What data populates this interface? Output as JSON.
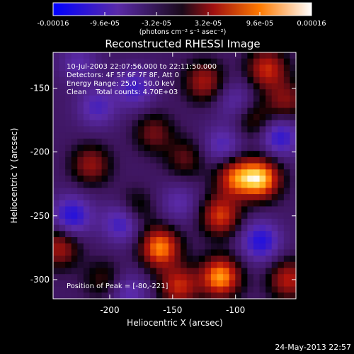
{
  "chart_data": {
    "type": "heatmap",
    "title": "Reconstructed RHESSI Image",
    "xlabel": "Heliocentric X (arcsec)",
    "ylabel": "Heliocentric Y (arcsec)",
    "xlim": [
      -245,
      -52
    ],
    "ylim": [
      -315,
      -122
    ],
    "x_ticks": [
      -200,
      -150,
      -100
    ],
    "y_ticks": [
      -150,
      -200,
      -250,
      -300
    ],
    "colorbar": {
      "ticks": [
        "-0.00016",
        "-9.6e-05",
        "-3.2e-05",
        "3.2e-05",
        "9.6e-05",
        "0.00016"
      ],
      "range": [
        -0.00016,
        0.00016
      ],
      "unit_label": "(photons cm⁻² s⁻¹ asec⁻²)",
      "colors": [
        "#0000ff",
        "#5a2aa8",
        "#1a0a1a",
        "#a01010",
        "#ff7a00",
        "#ffffff"
      ]
    },
    "annotations": [
      "10-Jul-2003 22:07:56.000 to 22:11:50.000",
      "Detectors: 4F 5F 6F 7F 8F, Att 0",
      "Energy Range: 25.0 - 50.0 keV",
      "Clean    Total counts: 4.70E+03"
    ],
    "peak_label": "Position of Peak = [-80,-221]",
    "blobs": [
      {
        "x": -80,
        "y": -221,
        "v": 1.0
      },
      {
        "x": -112,
        "y": -298,
        "v": 0.95
      },
      {
        "x": -160,
        "y": -275,
        "v": 0.9
      },
      {
        "x": -100,
        "y": -220,
        "v": 0.75
      },
      {
        "x": -75,
        "y": -135,
        "v": 0.65
      },
      {
        "x": -125,
        "y": -145,
        "v": 0.55
      },
      {
        "x": -112,
        "y": -250,
        "v": 0.7
      },
      {
        "x": -145,
        "y": -305,
        "v": 0.65
      },
      {
        "x": -58,
        "y": -300,
        "v": 0.6
      },
      {
        "x": -60,
        "y": -160,
        "v": 0.45
      },
      {
        "x": -215,
        "y": -210,
        "v": 0.5
      },
      {
        "x": -240,
        "y": -275,
        "v": 0.55
      },
      {
        "x": -180,
        "y": -245,
        "v": 0.35
      },
      {
        "x": -165,
        "y": -185,
        "v": 0.4
      },
      {
        "x": -205,
        "y": -300,
        "v": 0.3
      },
      {
        "x": -140,
        "y": -205,
        "v": 0.35
      },
      {
        "x": -85,
        "y": -175,
        "v": 0.35
      },
      {
        "x": -80,
        "y": -270,
        "v": -0.6
      },
      {
        "x": -190,
        "y": -255,
        "v": -0.55
      },
      {
        "x": -230,
        "y": -250,
        "v": -0.6
      },
      {
        "x": -65,
        "y": -188,
        "v": -0.55
      },
      {
        "x": -180,
        "y": -150,
        "v": -0.45
      },
      {
        "x": -110,
        "y": -195,
        "v": -0.4
      },
      {
        "x": -210,
        "y": -165,
        "v": -0.4
      },
      {
        "x": -145,
        "y": -240,
        "v": -0.3
      },
      {
        "x": -185,
        "y": -310,
        "v": -0.35
      },
      {
        "x": -100,
        "y": -160,
        "v": -0.3
      },
      {
        "x": -225,
        "y": -130,
        "v": -0.3
      }
    ]
  },
  "footer": {
    "date": "24-May-2013 22:57"
  }
}
